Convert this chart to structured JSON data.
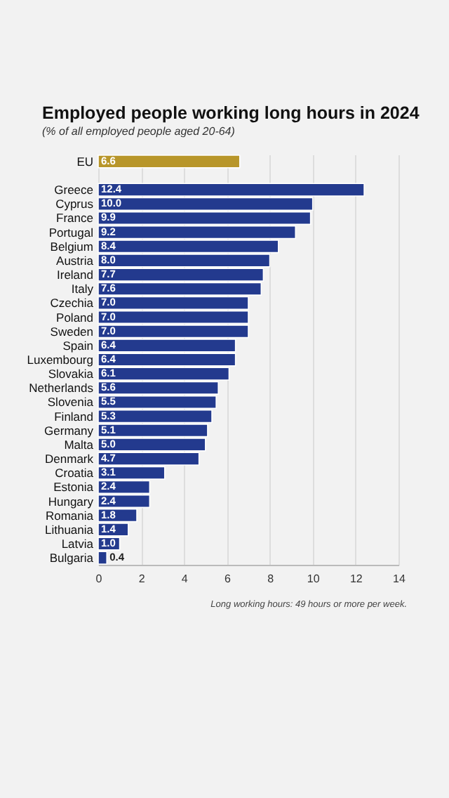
{
  "chart_data": {
    "type": "bar",
    "orientation": "horizontal",
    "title": "Employed people working long hours in 2024",
    "subtitle": "(% of all employed people aged 20-64)",
    "categories": [
      "EU",
      null,
      "Greece",
      "Cyprus",
      "France",
      "Portugal",
      "Belgium",
      "Austria",
      "Ireland",
      "Italy",
      "Czechia",
      "Poland",
      "Sweden",
      "Spain",
      "Luxembourg",
      "Slovakia",
      "Netherlands",
      "Slovenia",
      "Finland",
      "Germany",
      "Malta",
      "Denmark",
      "Croatia",
      "Estonia",
      "Hungary",
      "Romania",
      "Lithuania",
      "Latvia",
      "Bulgaria"
    ],
    "values": [
      6.6,
      null,
      12.4,
      10.0,
      9.9,
      9.2,
      8.4,
      8.0,
      7.7,
      7.6,
      7.0,
      7.0,
      7.0,
      6.4,
      6.4,
      6.1,
      5.6,
      5.5,
      5.3,
      5.1,
      5.0,
      4.7,
      3.1,
      2.4,
      2.4,
      1.8,
      1.4,
      1.0,
      0.4
    ],
    "colors": [
      "#b8962a",
      null,
      "#233a8e",
      "#233a8e",
      "#233a8e",
      "#233a8e",
      "#233a8e",
      "#233a8e",
      "#233a8e",
      "#233a8e",
      "#233a8e",
      "#233a8e",
      "#233a8e",
      "#233a8e",
      "#233a8e",
      "#233a8e",
      "#233a8e",
      "#233a8e",
      "#233a8e",
      "#233a8e",
      "#233a8e",
      "#233a8e",
      "#233a8e",
      "#233a8e",
      "#233a8e",
      "#233a8e",
      "#233a8e",
      "#233a8e",
      "#233a8e"
    ],
    "value_labels": [
      "6.6",
      null,
      "12.4",
      "10.0",
      "9.9",
      "9.2",
      "8.4",
      "8.0",
      "7.7",
      "7.6",
      "7.0",
      "7.0",
      "7.0",
      "6.4",
      "6.4",
      "6.1",
      "5.6",
      "5.5",
      "5.3",
      "5.1",
      "5.0",
      "4.7",
      "3.1",
      "2.4",
      "2.4",
      "1.8",
      "1.4",
      "1.0",
      "0.4"
    ],
    "xlim": [
      0,
      14
    ],
    "xticks": [
      0,
      2,
      4,
      6,
      8,
      10,
      12,
      14
    ],
    "grid": "x",
    "annotations": [
      "Long working hours: 49 hours or more per week."
    ]
  }
}
